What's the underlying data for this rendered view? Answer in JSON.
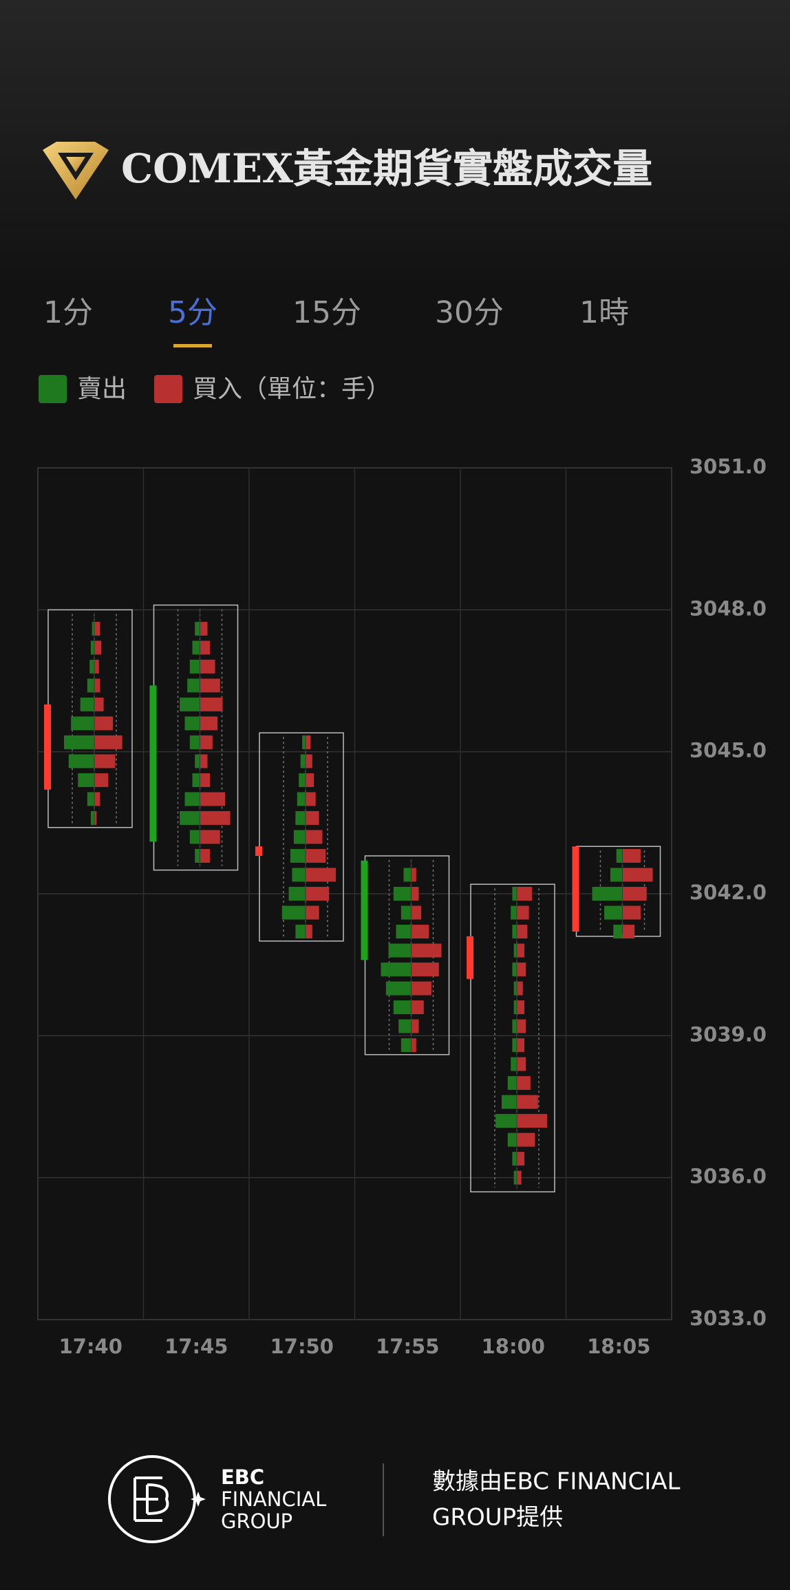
{
  "chart_data": {
    "type": "footprint",
    "title": "COMEX黃金期貨實盤成交量",
    "tabs": [
      "1分",
      "5分",
      "15分",
      "30分",
      "1時"
    ],
    "active_tab": 1,
    "legend": {
      "sell": "賣出",
      "buy": "買入",
      "unit": "（單位：手）"
    },
    "sell_color": "#1f7a1f",
    "buy_color": "#b83030",
    "up_color": "#ff3b30",
    "down_color": "#1fa31f",
    "ylim": [
      3033,
      3051
    ],
    "yticks": [
      {
        "value": 3033,
        "label": "3033.0"
      },
      {
        "value": 3036,
        "label": "3036.0"
      },
      {
        "value": 3039,
        "label": "3039.0"
      },
      {
        "value": 3042,
        "label": "3042.0"
      },
      {
        "value": 3045,
        "label": "3045.0"
      },
      {
        "value": 3048,
        "label": "3048.0"
      },
      {
        "value": 3051,
        "label": "3051.0"
      }
    ],
    "grid": true,
    "categories": [
      "17:40",
      "17:45",
      "17:50",
      "17:55",
      "18:00",
      "18:05"
    ],
    "candles": [
      {
        "open": 3044.2,
        "close": 3046.0,
        "high": 3048.0,
        "low": 3043.4,
        "prices": [
          3043.6,
          3044.0,
          3044.4,
          3044.8,
          3045.2,
          3045.6,
          3046.0,
          3046.4,
          3046.8,
          3047.2,
          3047.6
        ],
        "sell": [
          3,
          6,
          14,
          22,
          26,
          20,
          12,
          6,
          4,
          3,
          2
        ],
        "buy": [
          2,
          5,
          12,
          18,
          24,
          16,
          8,
          5,
          4,
          6,
          5
        ]
      },
      {
        "open": 3046.4,
        "close": 3043.1,
        "high": 3048.1,
        "low": 3042.5,
        "prices": [
          3042.8,
          3043.2,
          3043.6,
          3044.0,
          3044.4,
          3044.8,
          3045.2,
          3045.6,
          3046.0,
          3046.4,
          3046.8,
          3047.2,
          3047.6
        ],
        "sell": [
          2,
          4,
          8,
          6,
          3,
          2,
          4,
          6,
          8,
          5,
          4,
          3,
          2
        ],
        "buy": [
          4,
          8,
          12,
          10,
          4,
          3,
          5,
          7,
          9,
          8,
          6,
          4,
          3
        ]
      },
      {
        "open": 3042.8,
        "close": 3043.0,
        "high": 3045.4,
        "low": 3041.0,
        "prices": [
          3041.2,
          3041.6,
          3042.0,
          3042.4,
          3042.8,
          3043.2,
          3043.6,
          3044.0,
          3044.4,
          3044.8,
          3045.2
        ],
        "sell": [
          6,
          14,
          10,
          8,
          9,
          7,
          6,
          5,
          4,
          3,
          2
        ],
        "buy": [
          4,
          8,
          14,
          18,
          12,
          10,
          8,
          6,
          5,
          4,
          3
        ]
      },
      {
        "open": 3042.7,
        "close": 3040.6,
        "high": 3042.8,
        "low": 3038.6,
        "prices": [
          3038.8,
          3039.2,
          3039.6,
          3040.0,
          3040.4,
          3040.8,
          3041.2,
          3041.6,
          3042.0,
          3042.4
        ],
        "sell": [
          8,
          10,
          14,
          20,
          24,
          18,
          12,
          8,
          14,
          6
        ],
        "buy": [
          4,
          6,
          10,
          16,
          22,
          24,
          14,
          8,
          6,
          4
        ]
      },
      {
        "open": 3040.2,
        "close": 3041.1,
        "high": 3042.2,
        "low": 3035.7,
        "prices": [
          3036.0,
          3036.4,
          3036.8,
          3037.2,
          3037.6,
          3038.0,
          3038.4,
          3038.8,
          3039.2,
          3039.6,
          3040.0,
          3040.4,
          3040.8,
          3041.2,
          3041.6,
          3042.0
        ],
        "sell": [
          2,
          3,
          6,
          14,
          10,
          6,
          4,
          3,
          3,
          2,
          2,
          3,
          2,
          3,
          4,
          3
        ],
        "buy": [
          3,
          5,
          12,
          20,
          14,
          9,
          6,
          5,
          6,
          5,
          4,
          6,
          5,
          7,
          8,
          10
        ]
      },
      {
        "open": 3041.2,
        "close": 3043.0,
        "high": 3043.0,
        "low": 3041.1,
        "prices": [
          3041.2,
          3041.6,
          3042.0,
          3042.4,
          3042.8
        ],
        "sell": [
          3,
          6,
          10,
          4,
          2
        ],
        "buy": [
          4,
          6,
          8,
          10,
          6
        ]
      }
    ]
  },
  "footer": {
    "brand": [
      "EBC",
      "FINANCIAL",
      "GROUP"
    ],
    "credit": [
      "數據由EBC FINANCIAL",
      "GROUP提供"
    ]
  }
}
